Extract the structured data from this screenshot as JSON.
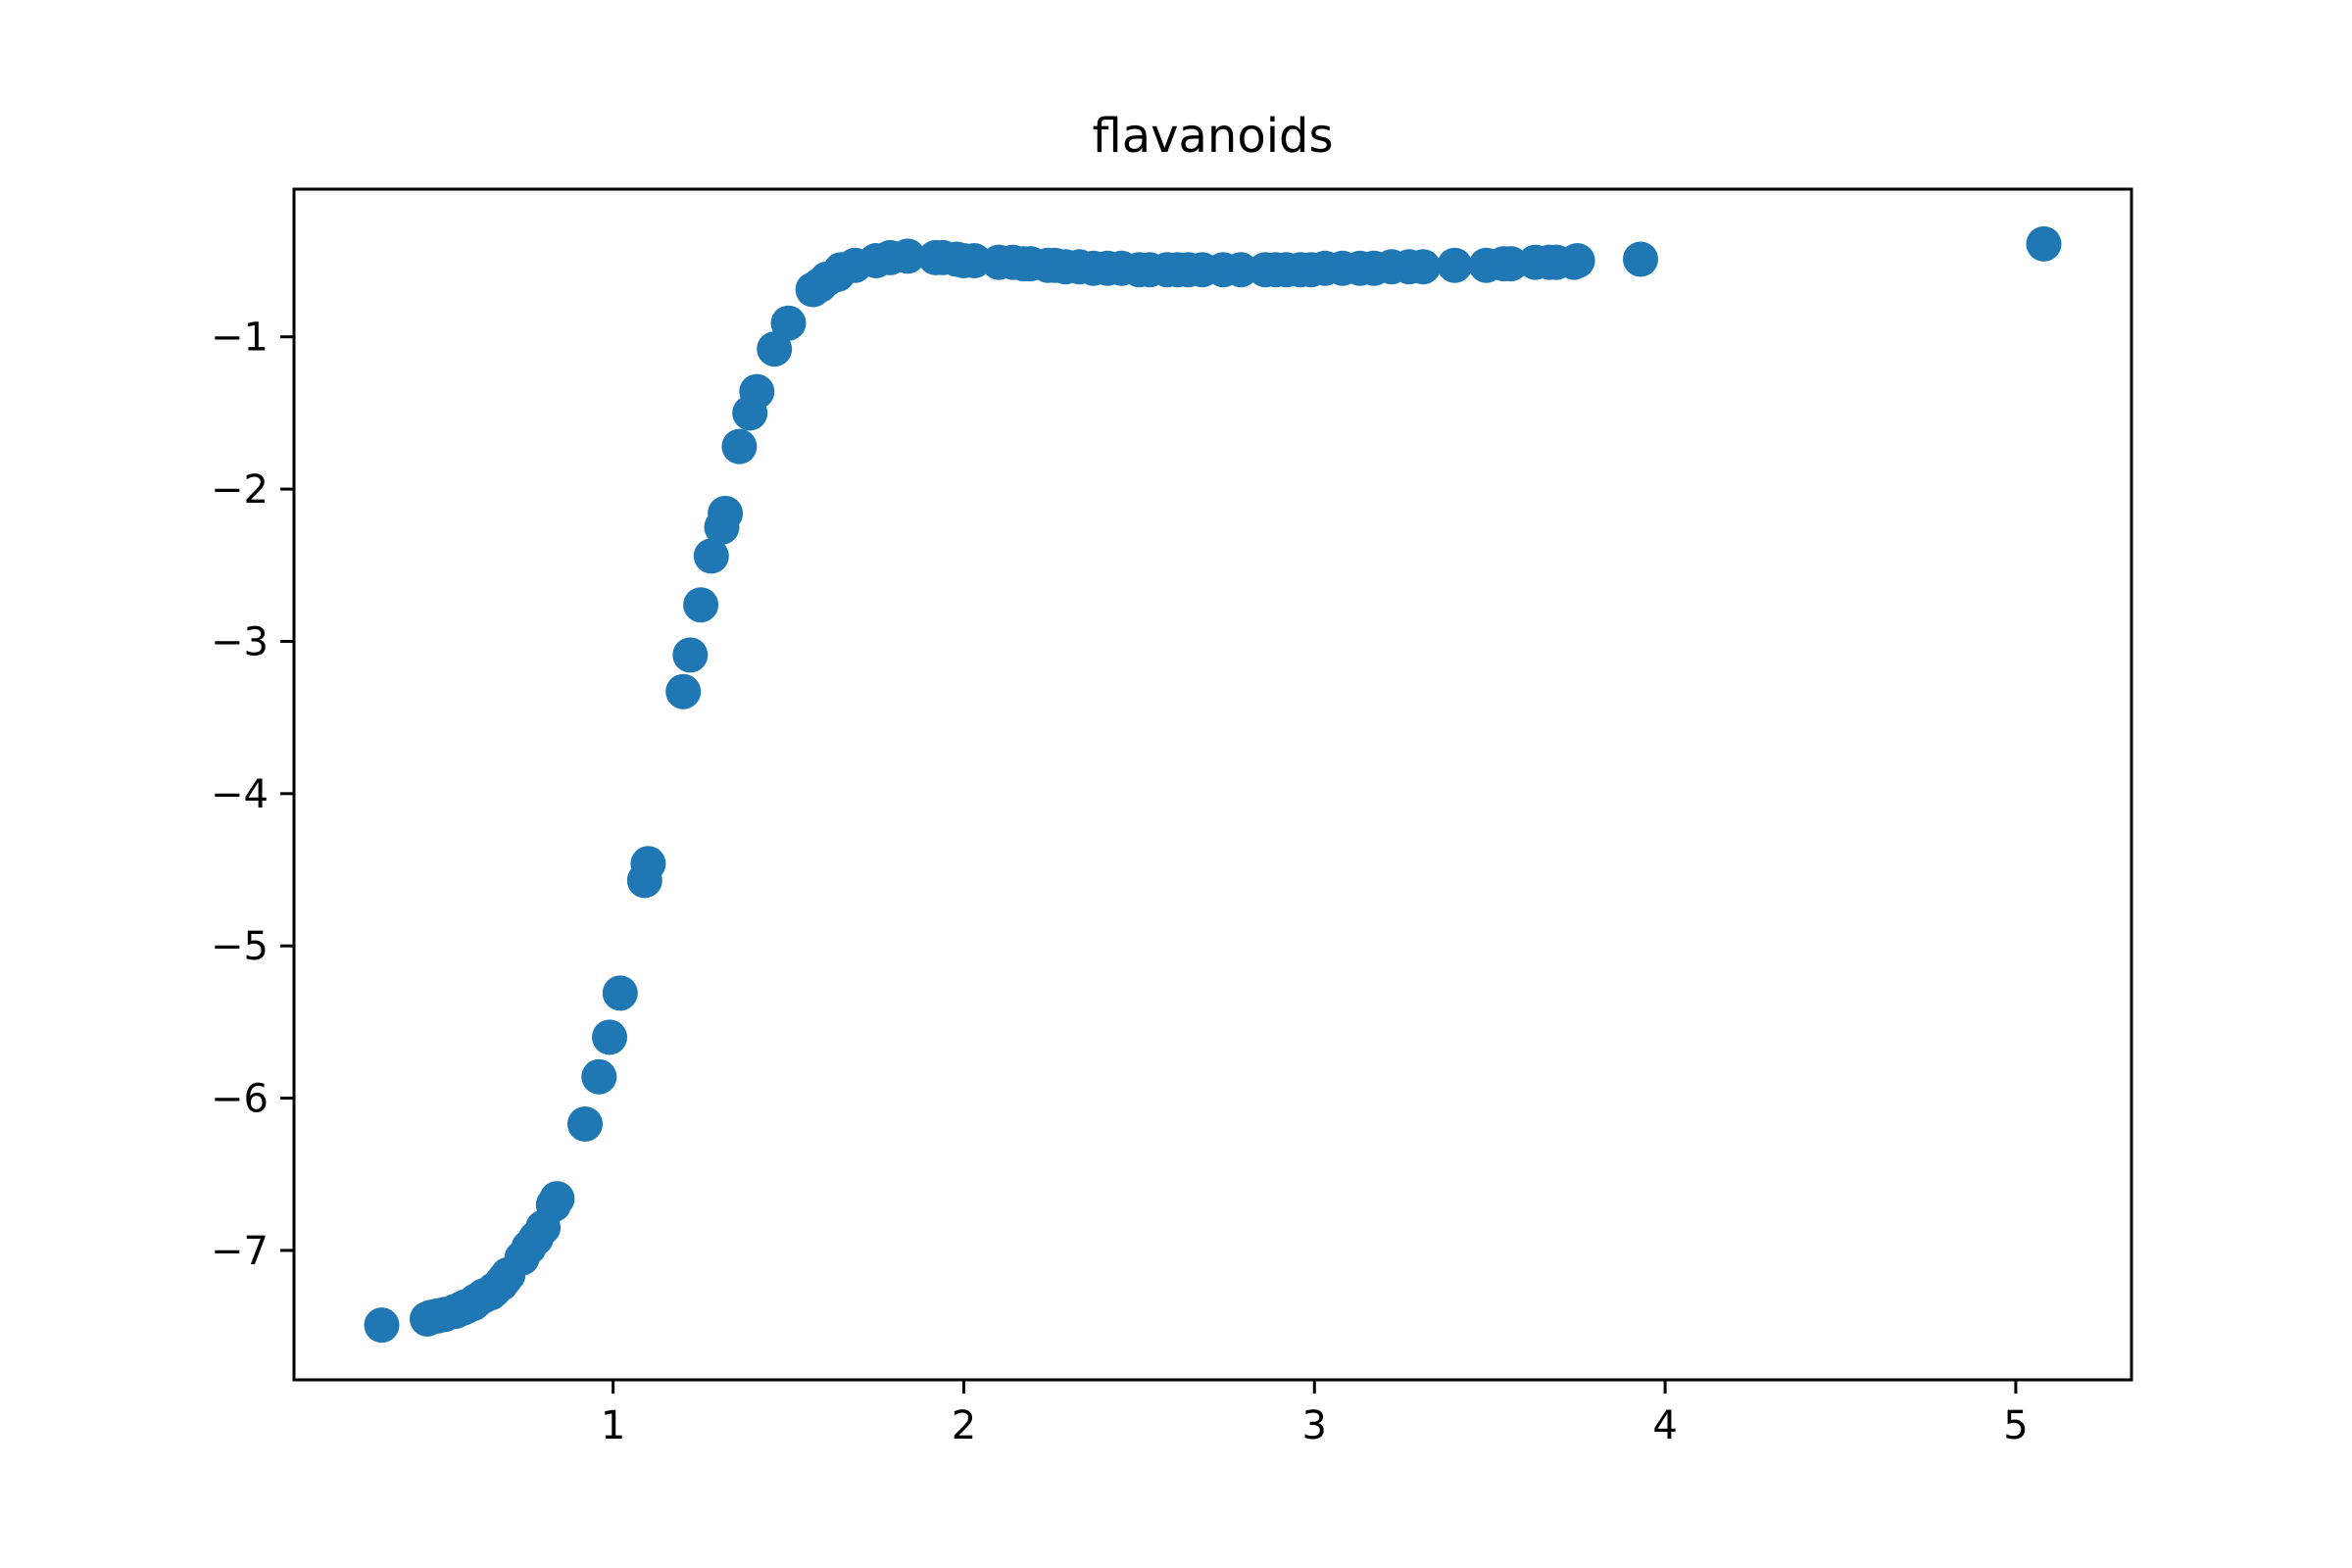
{
  "chart_data": {
    "type": "scatter",
    "title": "flavanoids",
    "xlabel": "",
    "ylabel": "",
    "xlim": [
      0.09,
      5.33
    ],
    "ylim": [
      -7.85,
      -0.03
    ],
    "xticks": [
      1,
      2,
      3,
      4,
      5
    ],
    "yticks": [
      -7,
      -6,
      -5,
      -4,
      -3,
      -2,
      -1
    ],
    "xtick_labels": [
      "1",
      "2",
      "3",
      "4",
      "5"
    ],
    "ytick_labels": [
      "−7",
      "−6",
      "−5",
      "−4",
      "−3",
      "−2",
      "−1"
    ],
    "grid": false,
    "legend": false,
    "marker_color": "#1f77b4",
    "series": [
      {
        "x": [
          0.34,
          0.47,
          0.48,
          0.5,
          0.52,
          0.55,
          0.57,
          0.58,
          0.6,
          0.61,
          0.63,
          0.65,
          0.66,
          0.68,
          0.69,
          0.7,
          0.74,
          0.76,
          0.78,
          0.8,
          0.83,
          0.84,
          0.92,
          0.96,
          0.99,
          1.02,
          1.09,
          1.1,
          1.2,
          1.22,
          1.25,
          1.28,
          1.31,
          1.32,
          1.36,
          1.39,
          1.41,
          1.46,
          1.5,
          1.57,
          1.59,
          1.61,
          1.64,
          1.65,
          1.69,
          1.75,
          1.79,
          1.84,
          1.92,
          1.94,
          1.98,
          2.0,
          2.03,
          2.1,
          2.14,
          2.17,
          2.19,
          2.24,
          2.26,
          2.29,
          2.33,
          2.37,
          2.41,
          2.45,
          2.5,
          2.53,
          2.58,
          2.61,
          2.64,
          2.68,
          2.74,
          2.79,
          2.86,
          2.89,
          2.92,
          2.96,
          2.99,
          3.03,
          3.08,
          3.13,
          3.17,
          3.22,
          3.27,
          3.31,
          3.4,
          3.49,
          3.54,
          3.56,
          3.63,
          3.67,
          3.69,
          3.74,
          3.75,
          3.93,
          5.08
        ],
        "y": [
          -7.49,
          -7.45,
          -7.44,
          -7.43,
          -7.42,
          -7.4,
          -7.38,
          -7.37,
          -7.35,
          -7.33,
          -7.3,
          -7.28,
          -7.26,
          -7.22,
          -7.19,
          -7.16,
          -7.05,
          -6.98,
          -6.92,
          -6.85,
          -6.7,
          -6.66,
          -6.17,
          -5.86,
          -5.6,
          -5.31,
          -4.57,
          -4.46,
          -3.33,
          -3.09,
          -2.76,
          -2.44,
          -2.25,
          -2.16,
          -1.72,
          -1.5,
          -1.36,
          -1.08,
          -0.91,
          -0.69,
          -0.66,
          -0.62,
          -0.59,
          -0.56,
          -0.53,
          -0.5,
          -0.48,
          -0.47,
          -0.48,
          -0.48,
          -0.49,
          -0.5,
          -0.5,
          -0.51,
          -0.51,
          -0.52,
          -0.52,
          -0.53,
          -0.53,
          -0.54,
          -0.54,
          -0.55,
          -0.55,
          -0.55,
          -0.56,
          -0.56,
          -0.56,
          -0.56,
          -0.56,
          -0.56,
          -0.56,
          -0.56,
          -0.56,
          -0.56,
          -0.56,
          -0.56,
          -0.56,
          -0.55,
          -0.55,
          -0.55,
          -0.55,
          -0.54,
          -0.54,
          -0.54,
          -0.53,
          -0.53,
          -0.52,
          -0.52,
          -0.51,
          -0.51,
          -0.51,
          -0.51,
          -0.5,
          -0.49,
          -0.39
        ]
      }
    ]
  }
}
